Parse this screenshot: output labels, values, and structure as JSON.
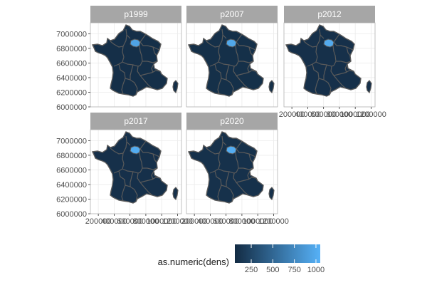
{
  "facets": [
    {
      "label": "p1999"
    },
    {
      "label": "p2007"
    },
    {
      "label": "p2012"
    },
    {
      "label": "p2017"
    },
    {
      "label": "p2020"
    }
  ],
  "axes": {
    "x_ticks": [
      200000,
      400000,
      600000,
      800000,
      1000000,
      1200000
    ],
    "x_tick_labels": [
      "200000",
      "400000",
      "600000",
      "800000",
      "1000000",
      "1200000"
    ],
    "y_ticks": [
      6000000,
      6200000,
      6400000,
      6600000,
      6800000,
      7000000
    ],
    "y_tick_labels": [
      "6000000",
      "6200000",
      "6400000",
      "6600000",
      "6800000",
      "7000000"
    ]
  },
  "legend": {
    "title": "as.numeric(dens)",
    "ticks": [
      250,
      500,
      750,
      1000
    ],
    "tick_labels": [
      "250",
      "500",
      "750",
      "1000"
    ],
    "range": [
      60,
      1050
    ],
    "low_color": "#132B43",
    "high_color": "#56B1F7"
  },
  "colors": {
    "strip_bg": "#a6a6a6",
    "panel_border": "#b3b3b3",
    "grid": "#ebebeb",
    "region_border": "#5a5a5a",
    "map_fill": "#1a3450",
    "highlight_fill": "#56b1f7"
  },
  "chart_data": {
    "type": "choropleth",
    "facet_variable": "population year",
    "fill_variable": "as.numeric(dens)",
    "xlim": [
      100000,
      1250000
    ],
    "ylim": [
      6000000,
      7150000
    ],
    "highlighted_region": "Île-de-France",
    "panels": [
      {
        "facet": "p1999",
        "highlight_dens": 950,
        "other_dens": 90
      },
      {
        "facet": "p2007",
        "highlight_dens": 980,
        "other_dens": 95
      },
      {
        "facet": "p2012",
        "highlight_dens": 1000,
        "other_dens": 97
      },
      {
        "facet": "p2017",
        "highlight_dens": 1010,
        "other_dens": 100
      },
      {
        "facet": "p2020",
        "highlight_dens": 1020,
        "other_dens": 102
      }
    ]
  }
}
